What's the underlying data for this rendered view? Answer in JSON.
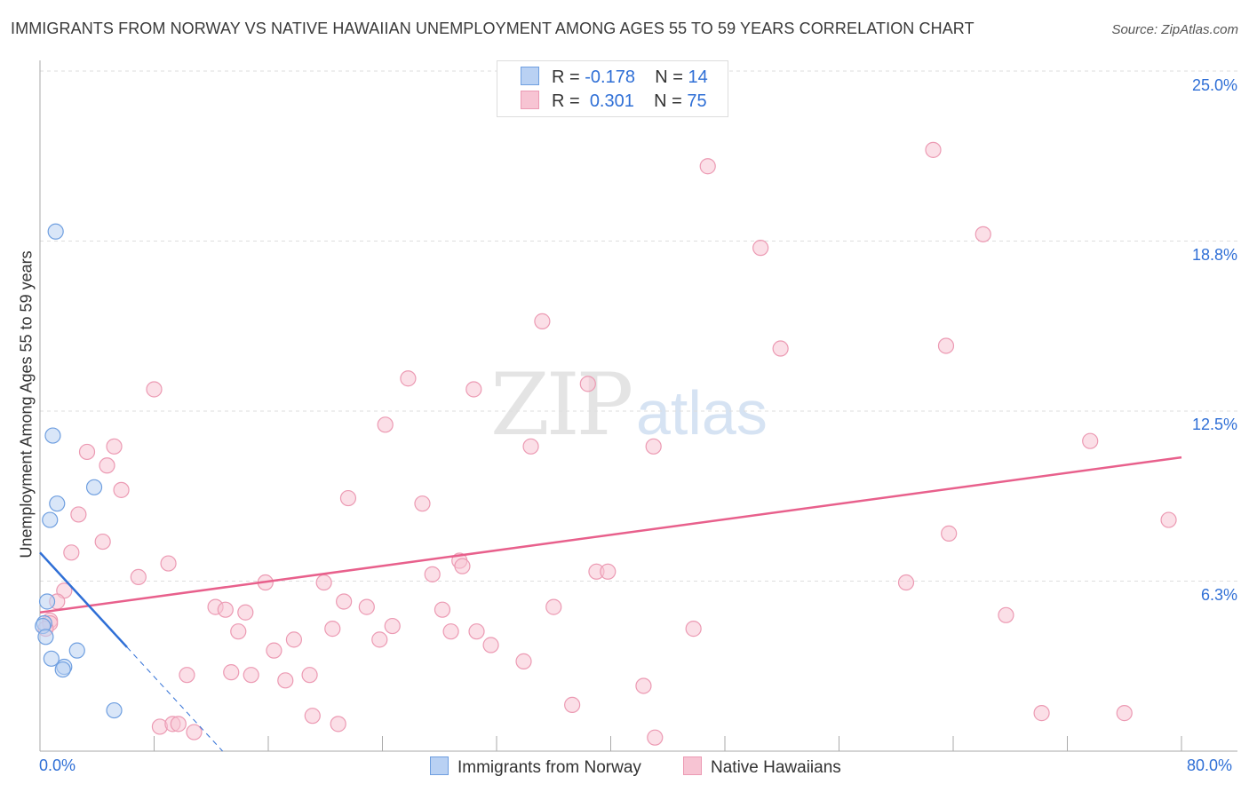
{
  "title": "IMMIGRANTS FROM NORWAY VS NATIVE HAWAIIAN UNEMPLOYMENT AMONG AGES 55 TO 59 YEARS CORRELATION CHART",
  "source": "Source: ZipAtlas.com",
  "watermark": {
    "zip": "ZIP",
    "atlas": "atlas"
  },
  "legend": {
    "r_label": "R =",
    "n_label": "N =",
    "rows": [
      {
        "r": "-0.178",
        "n": "14"
      },
      {
        "r": "0.301",
        "n": "75"
      }
    ]
  },
  "chart_data": {
    "type": "scatter",
    "title": "IMMIGRANTS FROM NORWAY VS NATIVE HAWAIIAN UNEMPLOYMENT AMONG AGES 55 TO 59 YEARS CORRELATION CHART",
    "xlabel": "",
    "ylabel": "Unemployment Among Ages 55 to 59 years",
    "xlim": [
      0,
      80
    ],
    "ylim": [
      0,
      25
    ],
    "x_tick_labels": [
      "0.0%",
      "80.0%"
    ],
    "y_ticks": [
      6.25,
      12.5,
      18.75,
      25
    ],
    "y_tick_labels": [
      "6.3%",
      "12.5%",
      "18.8%",
      "25.0%"
    ],
    "grid": true,
    "legend_position": "bottom",
    "series": [
      {
        "name": "Immigrants from Norway",
        "color": "#6f9fe0",
        "fill": "#b9d1f3",
        "line_color": "#2f6fd6",
        "trend": {
          "x0": 0,
          "y0": 7.3,
          "x_solid_end": 6.1,
          "x1": 12.8,
          "y1": 0
        },
        "points": [
          [
            1.1,
            19.1
          ],
          [
            0.9,
            11.6
          ],
          [
            3.8,
            9.7
          ],
          [
            1.2,
            9.1
          ],
          [
            0.7,
            8.5
          ],
          [
            0.5,
            5.5
          ],
          [
            0.3,
            4.7
          ],
          [
            0.2,
            4.6
          ],
          [
            0.4,
            4.2
          ],
          [
            0.8,
            3.4
          ],
          [
            1.7,
            3.1
          ],
          [
            1.6,
            3.0
          ],
          [
            2.6,
            3.7
          ],
          [
            5.2,
            1.5
          ]
        ]
      },
      {
        "name": "Native Hawaiians",
        "color": "#ec9ab3",
        "fill": "#f7c4d3",
        "line_color": "#e8608c",
        "trend": {
          "x0": 0,
          "y0": 5.1,
          "x1": 80,
          "y1": 10.8
        },
        "points": [
          [
            46.8,
            21.5
          ],
          [
            62.6,
            22.1
          ],
          [
            50.5,
            18.5
          ],
          [
            66.1,
            19.0
          ],
          [
            35.2,
            15.8
          ],
          [
            51.9,
            14.8
          ],
          [
            63.5,
            14.9
          ],
          [
            8.0,
            13.3
          ],
          [
            25.8,
            13.7
          ],
          [
            30.4,
            13.3
          ],
          [
            38.4,
            13.5
          ],
          [
            24.2,
            12.0
          ],
          [
            34.4,
            11.2
          ],
          [
            43.0,
            11.2
          ],
          [
            73.6,
            11.4
          ],
          [
            3.3,
            11.0
          ],
          [
            5.2,
            11.2
          ],
          [
            4.7,
            10.5
          ],
          [
            5.7,
            9.6
          ],
          [
            21.6,
            9.3
          ],
          [
            26.8,
            9.1
          ],
          [
            2.7,
            8.7
          ],
          [
            4.4,
            7.7
          ],
          [
            79.1,
            8.5
          ],
          [
            63.7,
            8.0
          ],
          [
            2.2,
            7.3
          ],
          [
            9.0,
            6.9
          ],
          [
            29.4,
            7.0
          ],
          [
            29.6,
            6.8
          ],
          [
            6.9,
            6.4
          ],
          [
            27.5,
            6.5
          ],
          [
            39.0,
            6.6
          ],
          [
            39.8,
            6.6
          ],
          [
            15.8,
            6.2
          ],
          [
            19.9,
            6.2
          ],
          [
            60.7,
            6.2
          ],
          [
            1.7,
            5.9
          ],
          [
            1.2,
            5.5
          ],
          [
            21.3,
            5.5
          ],
          [
            12.3,
            5.3
          ],
          [
            13.0,
            5.2
          ],
          [
            22.9,
            5.3
          ],
          [
            14.4,
            5.1
          ],
          [
            28.2,
            5.2
          ],
          [
            36.0,
            5.3
          ],
          [
            67.7,
            5.0
          ],
          [
            0.7,
            4.8
          ],
          [
            0.7,
            4.7
          ],
          [
            0.4,
            4.5
          ],
          [
            24.7,
            4.6
          ],
          [
            13.9,
            4.4
          ],
          [
            20.5,
            4.5
          ],
          [
            45.8,
            4.5
          ],
          [
            17.8,
            4.1
          ],
          [
            23.8,
            4.1
          ],
          [
            28.8,
            4.4
          ],
          [
            30.6,
            4.4
          ],
          [
            31.6,
            3.9
          ],
          [
            16.4,
            3.7
          ],
          [
            33.9,
            3.3
          ],
          [
            10.3,
            2.8
          ],
          [
            13.4,
            2.9
          ],
          [
            14.8,
            2.8
          ],
          [
            17.2,
            2.6
          ],
          [
            18.9,
            2.8
          ],
          [
            42.3,
            2.4
          ],
          [
            37.3,
            1.7
          ],
          [
            19.1,
            1.3
          ],
          [
            70.2,
            1.4
          ],
          [
            76.0,
            1.4
          ],
          [
            8.4,
            0.9
          ],
          [
            9.3,
            1.0
          ],
          [
            9.7,
            1.0
          ],
          [
            20.9,
            1.0
          ],
          [
            10.8,
            0.7
          ],
          [
            43.1,
            0.5
          ]
        ]
      }
    ]
  }
}
